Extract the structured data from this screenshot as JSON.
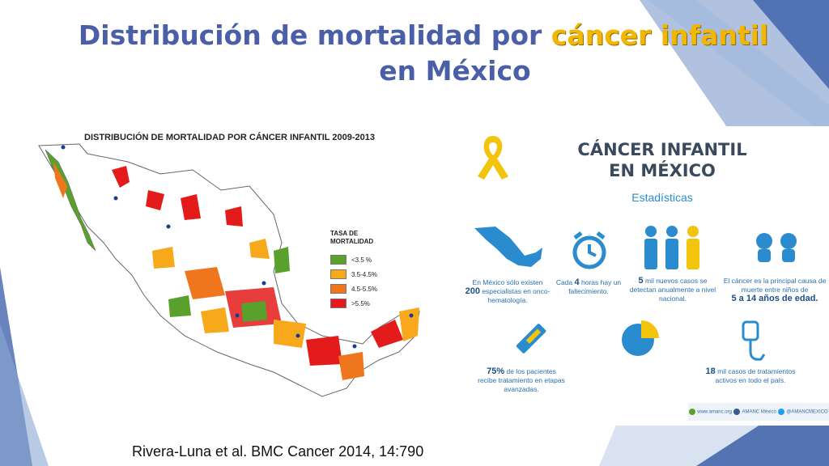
{
  "slide": {
    "title_part1": "Distribución de mortalidad por ",
    "title_highlight": "cáncer infantil",
    "title_line2": "en México",
    "citation": "Rivera-Luna et al. BMC Cancer 2014, 14:790"
  },
  "map": {
    "title": "DISTRIBUCIÓN DE MORTALIDAD POR CÁNCER INFANTIL  2009-2013",
    "legend_title": "TASA DE MORTALIDAD",
    "legend": [
      {
        "label": "<3.5 %",
        "color": "#5aa02c"
      },
      {
        "label": "3.5-4.5%",
        "color": "#f7a81b"
      },
      {
        "label": "4.5-5.5%",
        "color": "#f0761e"
      },
      {
        "label": ">5.5%",
        "color": "#e31b1b"
      }
    ]
  },
  "infographic": {
    "title_line1": "CÁNCER INFANTIL",
    "title_line2": "EN MÉXICO",
    "subtitle": "Estadísticas",
    "stat1_pre": "En México sólo existen",
    "stat1_num": "200",
    "stat1_post": "especialistas en onco-hematología.",
    "stat2_pre": "Cada",
    "stat2_num": "4",
    "stat2_post": "horas hay un fallecimiento.",
    "stat3_num": "5",
    "stat3_text": "mil nuevos casos se detectan anualmente a nivel nacional.",
    "stat4_text": "El cáncer es la principal causa de muerte entre niños de",
    "stat4_range": "5 a 14 años de edad.",
    "stat5_num": "75%",
    "stat5_text": "de los pacientes recibe tratamiento en etapas avanzadas.",
    "stat6_num": "18",
    "stat6_text": "mil casos de tratamientos activos en todo el país.",
    "footer_web": "www.amanc.org",
    "footer_fb": "AMANC México",
    "footer_tw": "@AMANCMEXICO",
    "colors": {
      "primary": "#2a8ccf",
      "ribbon": "#f2c40c"
    }
  }
}
